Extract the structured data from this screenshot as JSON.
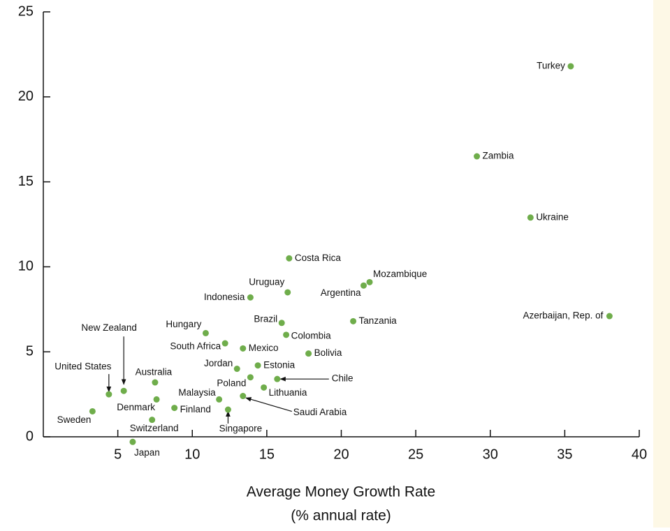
{
  "chart_data": {
    "type": "scatter",
    "x_label": [
      "Average Money Growth Rate",
      "(% annual rate)"
    ],
    "xlim": [
      0,
      40
    ],
    "ylim": [
      0,
      25
    ],
    "xticks": [
      5,
      10,
      15,
      20,
      25,
      30,
      35,
      40
    ],
    "yticks": [
      0,
      5,
      10,
      15,
      20,
      25
    ],
    "color": "#6fad4b",
    "labels": [
      "Turkey",
      "Zambia",
      "Ukraine",
      "Azerbaijan, Rep. of",
      "Costa Rica",
      "Mozambique",
      "Argentina",
      "Uruguay",
      "Indonesia",
      "Tanzania",
      "Brazil",
      "Hungary",
      "Colombia",
      "South Africa",
      "Mexico",
      "Bolivia",
      "Jordan",
      "Estonia",
      "Poland",
      "Chile",
      "Lithuania",
      "Australia",
      "New Zealand",
      "United States",
      "Malaysia",
      "Saudi Arabia",
      "Denmark",
      "Finland",
      "Singapore",
      "Sweden",
      "Switzerland",
      "Japan"
    ],
    "x": [
      35.4,
      29.1,
      32.7,
      38.0,
      16.5,
      21.9,
      21.5,
      16.4,
      13.9,
      20.8,
      16.0,
      10.9,
      16.3,
      12.2,
      13.4,
      17.8,
      13.0,
      14.4,
      13.9,
      15.7,
      14.8,
      7.5,
      5.4,
      4.4,
      11.8,
      13.4,
      7.6,
      8.8,
      12.4,
      3.3,
      7.3,
      6.0
    ],
    "y": [
      21.8,
      16.5,
      12.9,
      7.1,
      10.5,
      9.1,
      8.9,
      8.5,
      8.2,
      6.8,
      6.7,
      6.1,
      6.0,
      5.5,
      5.2,
      4.9,
      4.0,
      4.2,
      3.5,
      3.4,
      2.9,
      3.2,
      2.7,
      2.5,
      2.2,
      2.4,
      2.2,
      1.7,
      1.6,
      1.5,
      1.0,
      -0.3
    ]
  }
}
